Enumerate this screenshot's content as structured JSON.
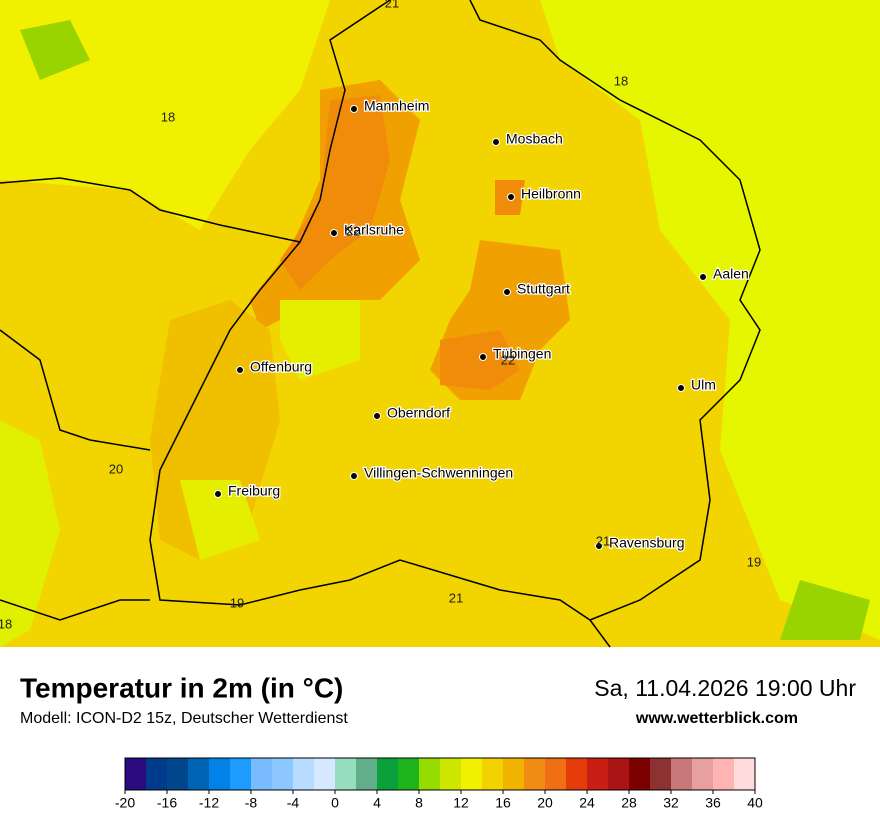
{
  "header": {
    "title": "Temperatur in 2m (in °C)",
    "model": "Modell: ICON-D2 15z, Deutscher Wetterdienst",
    "datetime": "Sa, 11.04.2026 19:00 Uhr",
    "website": "www.wetterblick.com"
  },
  "cities": [
    "Mannheim",
    "Mosbach",
    "Heilbronn",
    "Karlsruhe",
    "Aalen",
    "Stuttgart",
    "Tübingen",
    "Offenburg",
    "Ulm",
    "Oberndorf",
    "Villingen-Schwenningen",
    "Freiburg",
    "Ravensburg"
  ],
  "map_labels": [
    21,
    18,
    18,
    22,
    22,
    20,
    21,
    19,
    19,
    21,
    18
  ],
  "colorbar": {
    "ticks": [
      -20,
      -16,
      -12,
      -8,
      -4,
      0,
      4,
      8,
      12,
      16,
      20,
      24,
      28,
      32,
      36,
      40
    ],
    "lim": [
      -20,
      40
    ],
    "colors": [
      "#2c0a80",
      "#003a8a",
      "#00468c",
      "#0064b4",
      "#0082e6",
      "#1e9bff",
      "#78bcff",
      "#8cc8ff",
      "#b8dcff",
      "#d6e8ff",
      "#96dcbe",
      "#62ae8a",
      "#0aa03c",
      "#1eb41e",
      "#96dc00",
      "#cce600",
      "#f0f000",
      "#f2d200",
      "#f0b400",
      "#f08c14",
      "#f06e14",
      "#e63c0a",
      "#c81e14",
      "#aa1414",
      "#7c0000",
      "#8c3232",
      "#c87878",
      "#e6a0a0",
      "#ffb4b4",
      "#ffdcdc"
    ]
  }
}
